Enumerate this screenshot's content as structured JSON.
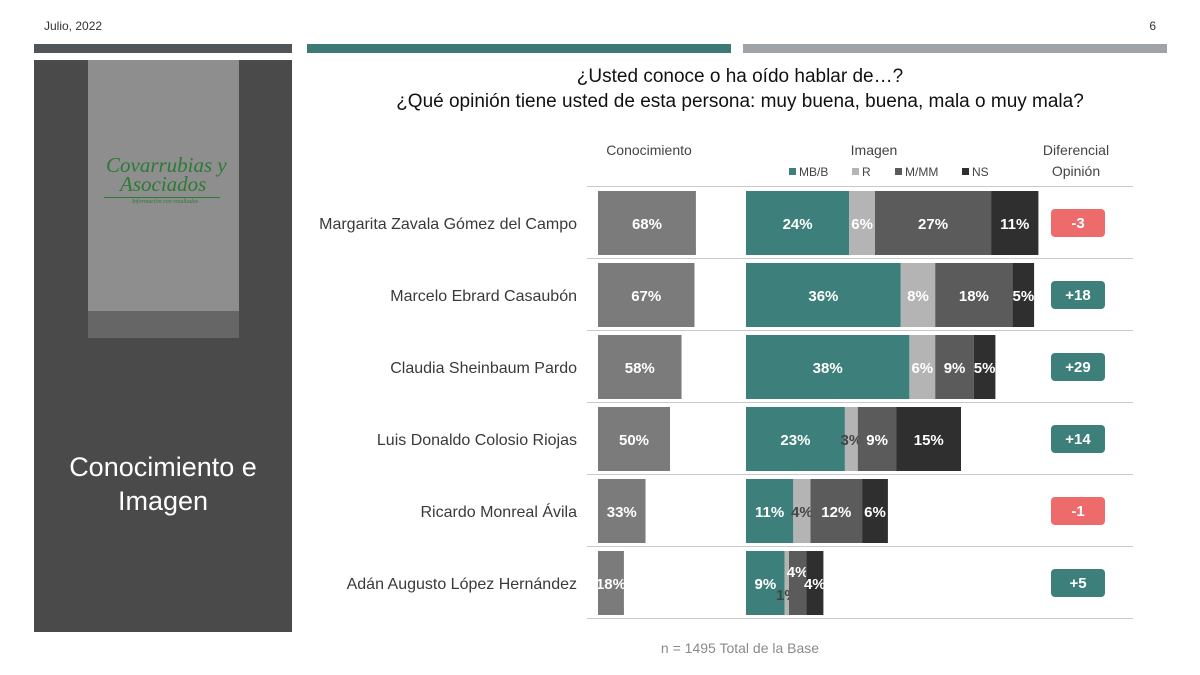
{
  "header": {
    "date": "Julio, 2022",
    "page_number": "6"
  },
  "sidebar": {
    "logo_name_line1": "Covarrubias y",
    "logo_name_line2": "Asociados",
    "logo_tagline": "Información con resultados",
    "section_title": "Conocimiento e Imagen"
  },
  "question": {
    "line1": "¿Usted conoce o ha oído hablar de…?",
    "line2": "¿Qué opinión tiene usted de esta persona: muy buena, buena, mala o muy mala?"
  },
  "footnote": "n = 1495 Total de la Base",
  "colors": {
    "knowledge": "#7b7b7b",
    "mb_b": "#3d7f7a",
    "r": "#b4b4b4",
    "m_mm": "#5b5b5b",
    "ns": "#2f2f2f",
    "diff_positive": "#3d7f7a",
    "diff_negative": "#ee6b6b"
  },
  "chart_data": {
    "type": "bar",
    "orientation": "horizontal",
    "column_headers": {
      "knowledge": "Conocimiento",
      "image": "Imagen",
      "diff_line1": "Diferencial",
      "diff_line2": "Opinión"
    },
    "categories": [
      "Margarita Zavala Gómez del Campo",
      "Marcelo Ebrard Casaubón",
      "Claudia Sheinbaum Pardo",
      "Luis Donaldo Colosio Riojas",
      "Ricardo Monreal Ávila",
      "Adán Augusto López Hernández"
    ],
    "knowledge": [
      68,
      67,
      58,
      50,
      33,
      18
    ],
    "image_series": [
      {
        "name": "MB/B",
        "values": [
          24,
          36,
          38,
          23,
          11,
          9
        ]
      },
      {
        "name": "R",
        "values": [
          6,
          8,
          6,
          3,
          4,
          1
        ]
      },
      {
        "name": "M/MM",
        "values": [
          27,
          18,
          9,
          9,
          12,
          4
        ]
      },
      {
        "name": "NS",
        "values": [
          11,
          5,
          5,
          15,
          6,
          4
        ]
      }
    ],
    "diferencial": [
      "-3",
      "+18",
      "+29",
      "+14",
      "-1",
      "+5"
    ],
    "value_format": "percent"
  }
}
